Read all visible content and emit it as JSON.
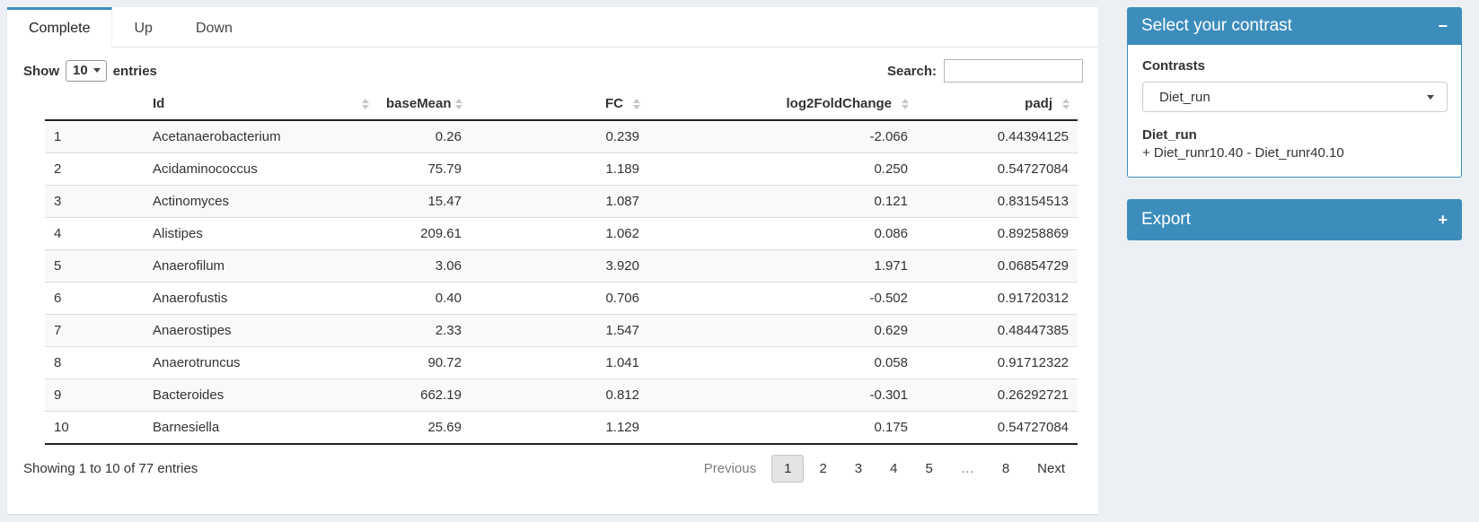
{
  "tabs": [
    {
      "label": "Complete",
      "active": true
    },
    {
      "label": "Up",
      "active": false
    },
    {
      "label": "Down",
      "active": false
    }
  ],
  "table_controls": {
    "show_label": "Show",
    "page_length": "10",
    "entries_label": "entries",
    "search_label": "Search:",
    "search_value": ""
  },
  "table": {
    "columns": [
      {
        "label": "",
        "align": "left",
        "sortable": false
      },
      {
        "label": "Id",
        "align": "left",
        "sortable": true
      },
      {
        "label": "baseMean",
        "align": "right",
        "sortable": true
      },
      {
        "label": "FC",
        "align": "right",
        "sortable": true
      },
      {
        "label": "log2FoldChange",
        "align": "right",
        "sortable": true
      },
      {
        "label": "padj",
        "align": "right",
        "sortable": true
      }
    ],
    "rows": [
      {
        "n": "1",
        "id": "Acetanaerobacterium",
        "baseMean": "0.26",
        "fc": "0.239",
        "log2fc": "-2.066",
        "padj": "0.44394125"
      },
      {
        "n": "2",
        "id": "Acidaminococcus",
        "baseMean": "75.79",
        "fc": "1.189",
        "log2fc": "0.250",
        "padj": "0.54727084"
      },
      {
        "n": "3",
        "id": "Actinomyces",
        "baseMean": "15.47",
        "fc": "1.087",
        "log2fc": "0.121",
        "padj": "0.83154513"
      },
      {
        "n": "4",
        "id": "Alistipes",
        "baseMean": "209.61",
        "fc": "1.062",
        "log2fc": "0.086",
        "padj": "0.89258869"
      },
      {
        "n": "5",
        "id": "Anaerofilum",
        "baseMean": "3.06",
        "fc": "3.920",
        "log2fc": "1.971",
        "padj": "0.06854729"
      },
      {
        "n": "6",
        "id": "Anaerofustis",
        "baseMean": "0.40",
        "fc": "0.706",
        "log2fc": "-0.502",
        "padj": "0.91720312"
      },
      {
        "n": "7",
        "id": "Anaerostipes",
        "baseMean": "2.33",
        "fc": "1.547",
        "log2fc": "0.629",
        "padj": "0.48447385"
      },
      {
        "n": "8",
        "id": "Anaerotruncus",
        "baseMean": "90.72",
        "fc": "1.041",
        "log2fc": "0.058",
        "padj": "0.91712322"
      },
      {
        "n": "9",
        "id": "Bacteroides",
        "baseMean": "662.19",
        "fc": "0.812",
        "log2fc": "-0.301",
        "padj": "0.26292721"
      },
      {
        "n": "10",
        "id": "Barnesiella",
        "baseMean": "25.69",
        "fc": "1.129",
        "log2fc": "0.175",
        "padj": "0.54727084"
      }
    ],
    "info": "Showing 1 to 10 of 77 entries",
    "pagination": {
      "previous": "Previous",
      "pages": [
        "1",
        "2",
        "3",
        "4",
        "5",
        "…",
        "8"
      ],
      "current": "1",
      "next": "Next"
    }
  },
  "contrast_panel": {
    "title": "Select your contrast",
    "collapse_icon": "−",
    "contrasts_label": "Contrasts",
    "selected_contrast": "Diet_run",
    "contrast_name": "Diet_run",
    "contrast_formula": "+ Diet_runr10.40 - Diet_runr40.10"
  },
  "export_panel": {
    "title": "Export",
    "expand_icon": "+"
  },
  "colors": {
    "primary": "#3c8dbc",
    "page_bg": "#ecf0f5"
  }
}
